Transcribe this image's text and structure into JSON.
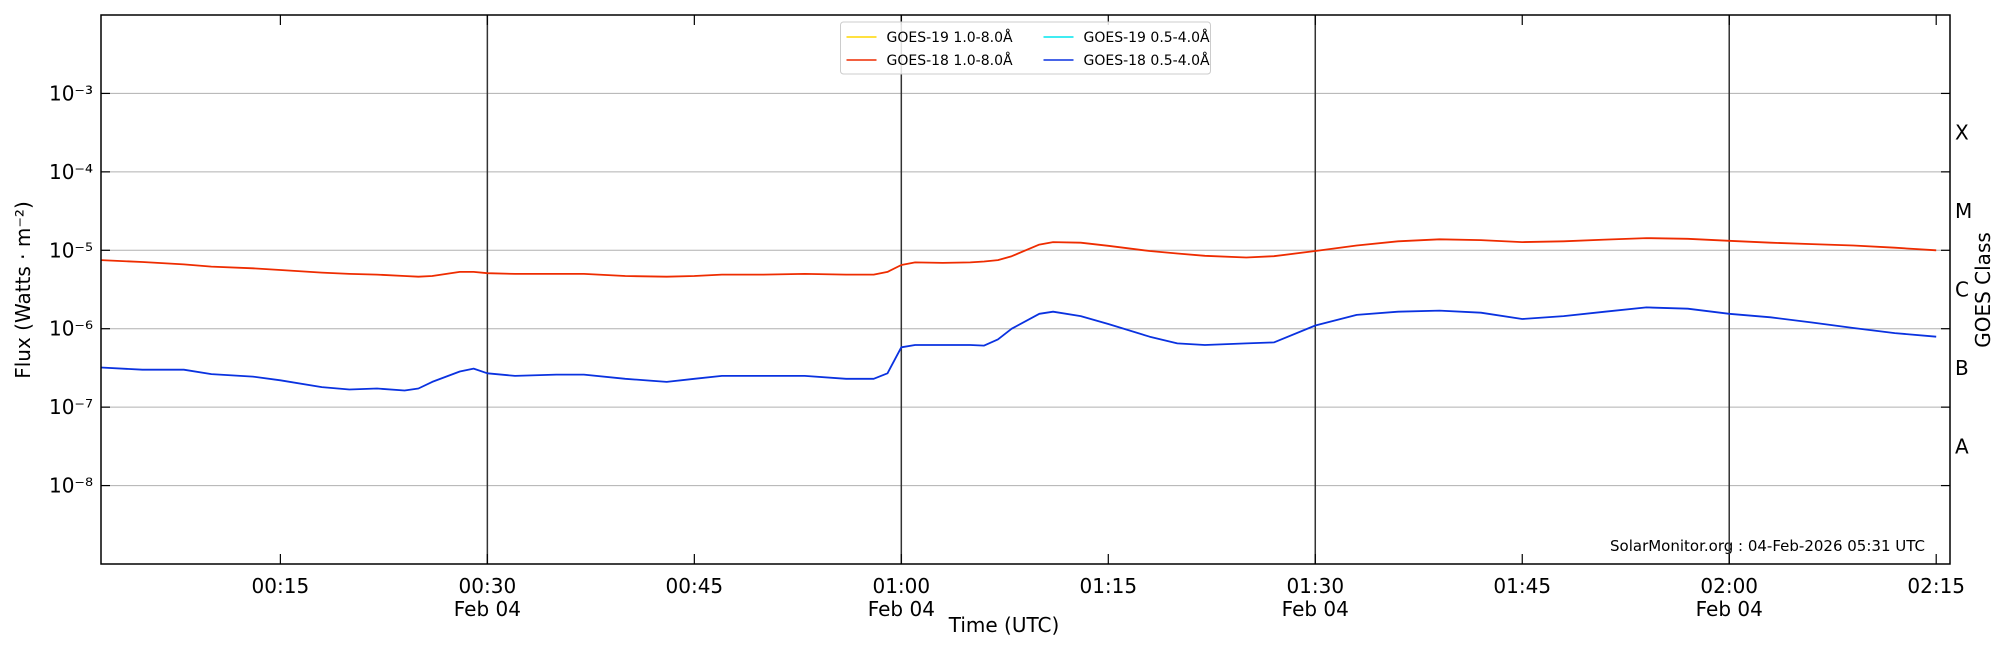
{
  "chart_data": {
    "type": "line",
    "ylabel": "Flux (Watts · m⁻²)",
    "xlabel": "Time (UTC)",
    "y2label": "GOES Class",
    "annotation": "SolarMonitor.org : 04-Feb-2026 05:31 UTC",
    "yscale": "log",
    "grid": true,
    "legend": "upper center",
    "ylim": [
      1e-09,
      0.01
    ],
    "yticks": [
      {
        "value": 1e-08,
        "label": "10⁻⁸"
      },
      {
        "value": 1e-07,
        "label": "10⁻⁷"
      },
      {
        "value": 1e-06,
        "label": "10⁻⁶"
      },
      {
        "value": 1e-05,
        "label": "10⁻⁵"
      },
      {
        "value": 0.0001,
        "label": "10⁻⁴"
      },
      {
        "value": 0.001,
        "label": "10⁻³"
      }
    ],
    "goes_classes": {
      "labels": [
        "A",
        "B",
        "C",
        "M",
        "X"
      ],
      "lower_bounds": [
        1e-08,
        1e-07,
        1e-06,
        1e-05,
        0.0001
      ]
    },
    "xlim": [
      "00:02",
      "02:16"
    ],
    "xticks": [
      "00:15",
      {
        "value": "00:30",
        "label": [
          "00:30",
          "Feb 04"
        ]
      },
      "00:45",
      {
        "value": "01:00",
        "label": [
          "01:00",
          "Feb 04"
        ]
      },
      "01:15",
      {
        "value": "01:30",
        "label": [
          "01:30",
          "Feb 04"
        ]
      },
      "01:45",
      {
        "value": "02:00",
        "label": [
          "02:00",
          "Feb 04"
        ]
      },
      "02:15"
    ],
    "x": [
      "00:02",
      "00:05",
      "00:08",
      "00:10",
      "00:13",
      "00:15",
      "00:18",
      "00:20",
      "00:22",
      "00:24",
      "00:25",
      "00:26",
      "00:28",
      "00:29",
      "00:30",
      "00:32",
      "00:35",
      "00:37",
      "00:40",
      "00:43",
      "00:45",
      "00:47",
      "00:50",
      "00:53",
      "00:56",
      "00:58",
      "00:59",
      "01:00",
      "01:01",
      "01:03",
      "01:05",
      "01:06",
      "01:07",
      "01:08",
      "01:10",
      "01:11",
      "01:13",
      "01:15",
      "01:18",
      "01:20",
      "01:22",
      "01:25",
      "01:27",
      "01:30",
      "01:33",
      "01:36",
      "01:39",
      "01:42",
      "01:45",
      "01:48",
      "01:51",
      "01:54",
      "01:57",
      "02:00",
      "02:03",
      "02:06",
      "02:09",
      "02:12",
      "02:15"
    ],
    "series": [
      {
        "name": "GOES-19 1.0-8.0Å",
        "color": "#ffd700",
        "values": [
          null,
          null,
          null,
          null,
          null,
          null,
          null,
          null,
          null,
          null,
          null,
          null,
          null,
          null,
          null,
          null,
          null,
          null,
          null,
          null,
          null,
          null,
          null,
          null,
          null,
          null,
          null,
          null,
          null,
          null,
          null,
          null,
          null,
          null,
          null,
          null,
          null,
          null,
          null,
          null,
          null,
          null,
          null,
          null,
          null,
          null,
          null,
          null,
          null,
          null,
          null,
          null,
          null,
          null,
          null,
          null,
          null,
          null,
          null
        ]
      },
      {
        "name": "GOES-19 0.5-4.0Å",
        "color": "#00e5ee",
        "values": [
          null,
          null,
          null,
          null,
          null,
          null,
          null,
          null,
          null,
          null,
          null,
          null,
          null,
          null,
          null,
          null,
          null,
          null,
          null,
          null,
          null,
          null,
          null,
          null,
          null,
          null,
          null,
          null,
          null,
          null,
          null,
          null,
          null,
          null,
          null,
          null,
          null,
          null,
          null,
          null,
          null,
          null,
          null,
          null,
          null,
          null,
          null,
          null,
          null,
          null,
          null,
          null,
          null,
          null,
          null,
          null,
          null,
          null,
          null
        ]
      },
      {
        "name": "GOES-18 1.0-8.0Å",
        "color": "#ee2c00",
        "values": [
          7.5e-06,
          7.1e-06,
          6.6e-06,
          6.2e-06,
          5.9e-06,
          5.6e-06,
          5.2e-06,
          5e-06,
          4.9e-06,
          4.7e-06,
          4.6e-06,
          4.7e-06,
          5.3e-06,
          5.3e-06,
          5.1e-06,
          5e-06,
          5e-06,
          5e-06,
          4.7e-06,
          4.6e-06,
          4.7e-06,
          4.9e-06,
          4.9e-06,
          5e-06,
          4.9e-06,
          4.9e-06,
          5.3e-06,
          6.5e-06,
          7e-06,
          6.9e-06,
          7e-06,
          7.2e-06,
          7.5e-06,
          8.4e-06,
          1.18e-05,
          1.27e-05,
          1.25e-05,
          1.14e-05,
          9.8e-06,
          9.1e-06,
          8.5e-06,
          8.1e-06,
          8.4e-06,
          9.8e-06,
          1.15e-05,
          1.3e-05,
          1.38e-05,
          1.35e-05,
          1.27e-05,
          1.3e-05,
          1.37e-05,
          1.43e-05,
          1.4e-05,
          1.32e-05,
          1.25e-05,
          1.2e-05,
          1.15e-05,
          1.08e-05,
          1e-05
        ]
      },
      {
        "name": "GOES-18 0.5-4.0Å",
        "color": "#0a32e0",
        "values": [
          3.2e-07,
          3e-07,
          3e-07,
          2.64e-07,
          2.45e-07,
          2.2e-07,
          1.8e-07,
          1.68e-07,
          1.73e-07,
          1.63e-07,
          1.73e-07,
          2.1e-07,
          2.85e-07,
          3.1e-07,
          2.7e-07,
          2.5e-07,
          2.6e-07,
          2.6e-07,
          2.3e-07,
          2.1e-07,
          2.3e-07,
          2.5e-07,
          2.5e-07,
          2.5e-07,
          2.3e-07,
          2.3e-07,
          2.7e-07,
          5.8e-07,
          6.2e-07,
          6.2e-07,
          6.2e-07,
          6.1e-07,
          7.3e-07,
          1e-06,
          1.55e-06,
          1.65e-06,
          1.45e-06,
          1.15e-06,
          7.9e-07,
          6.5e-07,
          6.2e-07,
          6.5e-07,
          6.7e-07,
          1.1e-06,
          1.5e-06,
          1.65e-06,
          1.7e-06,
          1.6e-06,
          1.33e-06,
          1.45e-06,
          1.65e-06,
          1.87e-06,
          1.8e-06,
          1.55e-06,
          1.4e-06,
          1.2e-06,
          1.02e-06,
          8.8e-07,
          7.9e-07
        ]
      }
    ]
  }
}
